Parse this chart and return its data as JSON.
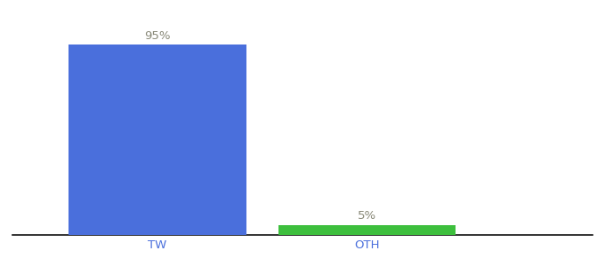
{
  "categories": [
    "TW",
    "OTH"
  ],
  "values": [
    95,
    5
  ],
  "bar_colors": [
    "#4a6fdc",
    "#3dbf3d"
  ],
  "label_fontsize": 9.5,
  "tick_fontsize": 9.5,
  "value_labels": [
    "95%",
    "5%"
  ],
  "ylim": [
    0,
    108
  ],
  "background_color": "#ffffff",
  "bar_width": 0.55,
  "axis_line_color": "#111111",
  "x_positions": [
    0.35,
    1.0
  ],
  "xlim": [
    -0.1,
    1.7
  ]
}
